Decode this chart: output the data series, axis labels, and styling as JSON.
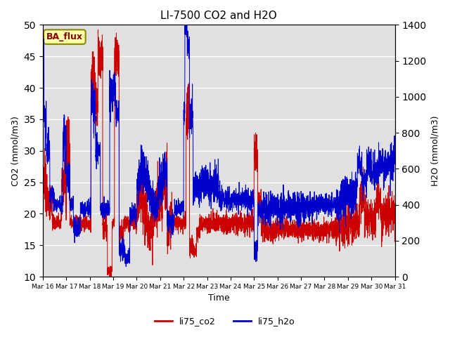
{
  "title": "LI-7500 CO2 and H2O",
  "ylabel_left": "CO2 (mmol/m3)",
  "ylabel_right": "H2O (mmol/m3)",
  "xlabel": "Time",
  "ylim_left": [
    10,
    50
  ],
  "ylim_right": [
    0,
    1400
  ],
  "annotation_text": "BA_flux",
  "annotation_bbox_facecolor": "#ffffaa",
  "annotation_bbox_edgecolor": "#888800",
  "color_co2": "#cc0000",
  "color_h2o": "#0000cc",
  "legend_labels": [
    "li75_co2",
    "li75_h2o"
  ],
  "background_color": "#e0e0e0",
  "xtick_labels": [
    "Mar 16",
    "Mar 17",
    "Mar 18",
    "Mar 19",
    "Mar 20",
    "Mar 21",
    "Mar 22",
    "Mar 23",
    "Mar 24",
    "Mar 25",
    "Mar 26",
    "Mar 27",
    "Mar 28",
    "Mar 29",
    "Mar 30",
    "Mar 31"
  ],
  "num_points": 4000,
  "seed": 42
}
